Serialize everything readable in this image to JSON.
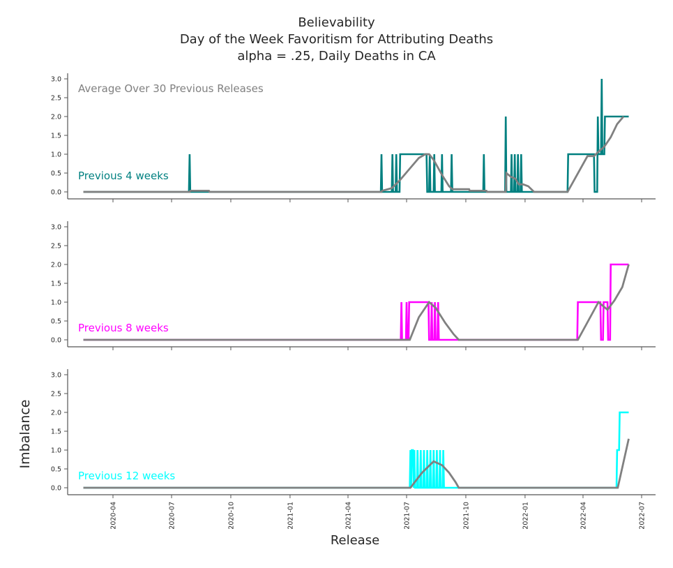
{
  "chart_data": {
    "type": "line",
    "title_lines": [
      "Believability",
      "Day of the Week Favoritism for Attributing Deaths",
      "alpha = .25, Daily Deaths in CA"
    ],
    "xlabel": "Release",
    "ylabel": "Imbalance",
    "x_ticks": [
      "2020-04",
      "2020-07",
      "2020-10",
      "2021-01",
      "2021-04",
      "2021-07",
      "2021-10",
      "2022-01",
      "2022-04",
      "2022-07"
    ],
    "y_ticks": [
      "0.0",
      "0.5",
      "1.0",
      "1.5",
      "2.0",
      "2.5",
      "3.0"
    ],
    "ylim": [
      0,
      3
    ],
    "xlim": [
      "2020-01-15",
      "2022-07-20"
    ],
    "annotation": "Average Over 30 Previous Releases",
    "grid": false,
    "legend": "none",
    "colors": {
      "average": "#808080",
      "4w": "#008080",
      "8w": "#ff00ff",
      "12w": "#00ffff",
      "axis": "#555555",
      "text": "#262626"
    },
    "panels": [
      {
        "label": "Previous 4 weeks",
        "color": "#008080",
        "series": [
          {
            "name": "Previous 4 weeks",
            "color": "#008080",
            "points": [
              [
                "2020-02-15",
                0
              ],
              [
                "2020-07-28",
                0
              ],
              [
                "2020-07-29",
                1
              ],
              [
                "2020-07-30",
                0
              ],
              [
                "2021-05-22",
                0
              ],
              [
                "2021-05-23",
                1
              ],
              [
                "2021-05-24",
                0
              ],
              [
                "2021-06-08",
                0
              ],
              [
                "2021-06-09",
                1
              ],
              [
                "2021-06-10",
                0
              ],
              [
                "2021-06-14",
                0
              ],
              [
                "2021-06-15",
                1
              ],
              [
                "2021-06-16",
                0
              ],
              [
                "2021-06-20",
                0
              ],
              [
                "2021-06-21",
                1
              ],
              [
                "2021-08-01",
                1
              ],
              [
                "2021-08-02",
                0
              ],
              [
                "2021-08-05",
                0
              ],
              [
                "2021-08-06",
                1
              ],
              [
                "2021-08-07",
                0
              ],
              [
                "2021-08-12",
                0
              ],
              [
                "2021-08-13",
                1
              ],
              [
                "2021-08-14",
                0
              ],
              [
                "2021-08-24",
                0
              ],
              [
                "2021-08-25",
                1
              ],
              [
                "2021-08-26",
                0
              ],
              [
                "2021-09-08",
                0
              ],
              [
                "2021-09-09",
                1
              ],
              [
                "2021-09-10",
                0
              ],
              [
                "2021-10-28",
                0
              ],
              [
                "2021-10-29",
                1
              ],
              [
                "2021-10-30",
                0
              ],
              [
                "2021-12-01",
                0
              ],
              [
                "2021-12-02",
                2
              ],
              [
                "2021-12-03",
                0
              ],
              [
                "2021-12-10",
                0
              ],
              [
                "2021-12-11",
                1
              ],
              [
                "2021-12-12",
                0
              ],
              [
                "2021-12-15",
                0
              ],
              [
                "2021-12-16",
                1
              ],
              [
                "2021-12-17",
                0
              ],
              [
                "2021-12-20",
                0
              ],
              [
                "2021-12-21",
                1
              ],
              [
                "2021-12-22",
                0
              ],
              [
                "2021-12-25",
                0
              ],
              [
                "2021-12-26",
                1
              ],
              [
                "2021-12-27",
                0
              ],
              [
                "2022-03-08",
                0
              ],
              [
                "2022-03-09",
                1
              ],
              [
                "2022-04-18",
                1
              ],
              [
                "2022-04-19",
                0
              ],
              [
                "2022-04-23",
                0
              ],
              [
                "2022-04-24",
                2
              ],
              [
                "2022-04-25",
                1
              ],
              [
                "2022-04-29",
                1
              ],
              [
                "2022-04-30",
                3
              ],
              [
                "2022-05-01",
                1
              ],
              [
                "2022-05-04",
                1
              ],
              [
                "2022-05-05",
                2
              ],
              [
                "2022-06-11",
                2
              ]
            ]
          },
          {
            "name": "Average Over 30 Previous Releases",
            "color": "#808080",
            "points": [
              [
                "2020-02-15",
                0
              ],
              [
                "2020-07-29",
                0
              ],
              [
                "2020-07-30",
                0.03
              ],
              [
                "2020-08-28",
                0.03
              ],
              [
                "2020-08-29",
                0
              ],
              [
                "2021-05-23",
                0
              ],
              [
                "2021-05-24",
                0.03
              ],
              [
                "2021-06-08",
                0.1
              ],
              [
                "2021-06-20",
                0.3
              ],
              [
                "2021-07-05",
                0.6
              ],
              [
                "2021-07-20",
                0.9
              ],
              [
                "2021-07-30",
                1
              ],
              [
                "2021-08-05",
                1
              ],
              [
                "2021-08-12",
                0.85
              ],
              [
                "2021-08-25",
                0.45
              ],
              [
                "2021-09-05",
                0.15
              ],
              [
                "2021-09-10",
                0.07
              ],
              [
                "2021-10-06",
                0.07
              ],
              [
                "2021-10-07",
                0.03
              ],
              [
                "2021-11-02",
                0.03
              ],
              [
                "2021-11-03",
                0
              ],
              [
                "2021-12-02",
                0
              ],
              [
                "2021-12-03",
                0.5
              ],
              [
                "2021-12-10",
                0.4
              ],
              [
                "2021-12-17",
                0.35
              ],
              [
                "2021-12-22",
                0.2
              ],
              [
                "2021-12-29",
                0.2
              ],
              [
                "2022-01-06",
                0.15
              ],
              [
                "2022-01-12",
                0.05
              ],
              [
                "2022-01-15",
                0
              ],
              [
                "2022-03-08",
                0
              ],
              [
                "2022-04-08",
                0.95
              ],
              [
                "2022-04-18",
                0.95
              ],
              [
                "2022-04-24",
                1.05
              ],
              [
                "2022-05-04",
                1.2
              ],
              [
                "2022-05-14",
                1.45
              ],
              [
                "2022-05-24",
                1.8
              ],
              [
                "2022-06-03",
                2
              ]
            ]
          }
        ]
      },
      {
        "label": "Previous 8 weeks",
        "color": "#ff00ff",
        "series": [
          {
            "name": "Previous 8 weeks",
            "color": "#ff00ff",
            "points": [
              [
                "2020-02-15",
                0
              ],
              [
                "2021-06-22",
                0
              ],
              [
                "2021-06-23",
                1
              ],
              [
                "2021-06-24",
                0
              ],
              [
                "2021-06-30",
                0
              ],
              [
                "2021-07-01",
                1
              ],
              [
                "2021-07-02",
                0
              ],
              [
                "2021-07-04",
                0
              ],
              [
                "2021-07-05",
                1
              ],
              [
                "2021-08-04",
                1
              ],
              [
                "2021-08-05",
                0
              ],
              [
                "2021-08-08",
                0
              ],
              [
                "2021-08-09",
                1
              ],
              [
                "2021-08-10",
                0
              ],
              [
                "2021-08-13",
                0
              ],
              [
                "2021-08-14",
                1
              ],
              [
                "2021-08-15",
                0
              ],
              [
                "2021-08-18",
                0
              ],
              [
                "2021-08-19",
                1
              ],
              [
                "2021-08-20",
                0
              ],
              [
                "2022-03-23",
                0
              ],
              [
                "2022-03-24",
                1
              ],
              [
                "2022-04-28",
                1
              ],
              [
                "2022-04-29",
                0
              ],
              [
                "2022-05-02",
                0
              ],
              [
                "2022-05-03",
                1
              ],
              [
                "2022-05-09",
                1
              ],
              [
                "2022-05-10",
                0
              ],
              [
                "2022-05-13",
                0
              ],
              [
                "2022-05-14",
                2
              ],
              [
                "2022-06-11",
                2
              ]
            ]
          },
          {
            "name": "Average Over 30 Previous Releases",
            "color": "#808080",
            "points": [
              [
                "2020-02-15",
                0
              ],
              [
                "2021-07-06",
                0
              ],
              [
                "2021-07-20",
                0.6
              ],
              [
                "2021-08-05",
                1
              ],
              [
                "2021-08-15",
                0.85
              ],
              [
                "2021-08-30",
                0.45
              ],
              [
                "2021-09-12",
                0.15
              ],
              [
                "2021-09-20",
                0
              ],
              [
                "2022-03-24",
                0
              ],
              [
                "2022-04-25",
                1
              ],
              [
                "2022-05-09",
                0.8
              ],
              [
                "2022-05-20",
                1.05
              ],
              [
                "2022-06-01",
                1.4
              ],
              [
                "2022-06-11",
                2
              ]
            ]
          }
        ]
      },
      {
        "label": "Previous 12 weeks",
        "color": "#00ffff",
        "series": [
          {
            "name": "Previous 12 weeks",
            "color": "#00ffff",
            "points": [
              [
                "2020-02-15",
                0
              ],
              [
                "2021-07-06",
                0
              ],
              [
                "2021-07-07",
                1
              ],
              [
                "2021-07-08",
                0
              ],
              [
                "2021-07-09",
                1
              ],
              [
                "2021-07-11",
                1
              ],
              [
                "2021-07-12",
                0
              ],
              [
                "2021-07-13",
                1
              ],
              [
                "2021-07-14",
                0
              ],
              [
                "2021-07-17",
                0
              ],
              [
                "2021-07-18",
                1
              ],
              [
                "2021-07-19",
                0
              ],
              [
                "2021-07-22",
                0
              ],
              [
                "2021-07-23",
                1
              ],
              [
                "2021-07-24",
                0
              ],
              [
                "2021-07-27",
                0
              ],
              [
                "2021-07-28",
                1
              ],
              [
                "2021-07-29",
                0
              ],
              [
                "2021-08-01",
                0
              ],
              [
                "2021-08-02",
                1
              ],
              [
                "2021-08-03",
                0
              ],
              [
                "2021-08-06",
                0
              ],
              [
                "2021-08-07",
                1
              ],
              [
                "2021-08-08",
                0
              ],
              [
                "2021-08-11",
                0
              ],
              [
                "2021-08-12",
                1
              ],
              [
                "2021-08-13",
                0
              ],
              [
                "2021-08-16",
                0
              ],
              [
                "2021-08-17",
                1
              ],
              [
                "2021-08-18",
                0
              ],
              [
                "2021-08-21",
                0
              ],
              [
                "2021-08-22",
                1
              ],
              [
                "2021-08-23",
                0
              ],
              [
                "2021-08-26",
                0
              ],
              [
                "2021-08-27",
                1
              ],
              [
                "2021-08-28",
                0
              ],
              [
                "2022-05-23",
                0
              ],
              [
                "2022-05-24",
                1
              ],
              [
                "2022-05-27",
                1
              ],
              [
                "2022-05-28",
                2
              ],
              [
                "2022-06-11",
                2
              ]
            ]
          },
          {
            "name": "Average Over 30 Previous Releases",
            "color": "#808080",
            "points": [
              [
                "2020-02-15",
                0
              ],
              [
                "2021-07-07",
                0
              ],
              [
                "2021-07-25",
                0.4
              ],
              [
                "2021-08-12",
                0.7
              ],
              [
                "2021-08-25",
                0.6
              ],
              [
                "2021-09-05",
                0.4
              ],
              [
                "2021-09-15",
                0.15
              ],
              [
                "2021-09-20",
                0
              ],
              [
                "2022-05-25",
                0
              ],
              [
                "2022-06-11",
                1.3
              ]
            ]
          }
        ]
      }
    ]
  }
}
